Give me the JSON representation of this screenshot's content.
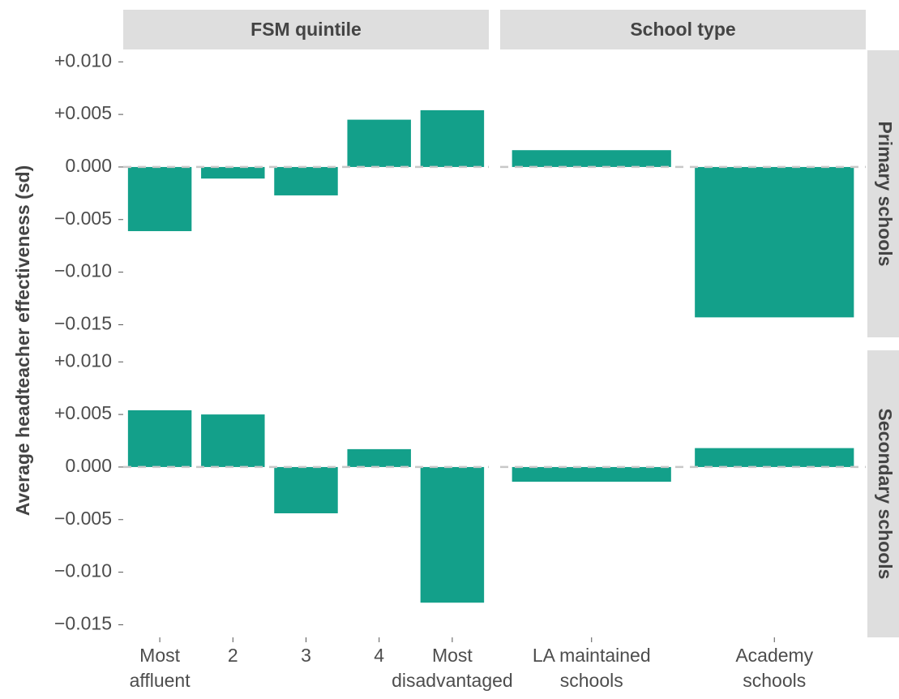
{
  "chart_data": {
    "type": "bar",
    "ylabel": "Average headteacher effectiveness (sd)",
    "color": "#13a08a",
    "ylim": [
      -0.0162,
      0.0111
    ],
    "yticks": [
      {
        "value": 0.01,
        "label": "+0.010"
      },
      {
        "value": 0.005,
        "label": "+0.005"
      },
      {
        "value": 0,
        "label": "0.000"
      },
      {
        "value": -0.005,
        "label": "−0.005"
      },
      {
        "value": -0.01,
        "label": "−0.010"
      },
      {
        "value": -0.015,
        "label": "−0.015"
      }
    ],
    "reference_line": 0,
    "columns": [
      {
        "title": "FSM quintile",
        "categories": [
          [
            "Most",
            "affluent"
          ],
          [
            "2"
          ],
          [
            "3"
          ],
          [
            "4"
          ],
          [
            "Most",
            "disadvantaged"
          ]
        ]
      },
      {
        "title": "School type",
        "categories": [
          [
            "LA maintained",
            "schools"
          ],
          [
            "Academy",
            "schools"
          ]
        ]
      }
    ],
    "rows": [
      {
        "title": "Primary schools",
        "values": [
          [
            -0.0061,
            -0.0011,
            -0.0027,
            0.0045,
            0.0054
          ],
          [
            0.0016,
            -0.0143
          ]
        ]
      },
      {
        "title": "Secondary schools",
        "values": [
          [
            0.0054,
            0.005,
            -0.0044,
            0.0017,
            -0.0129
          ],
          [
            -0.0014,
            0.0018
          ]
        ]
      }
    ]
  }
}
